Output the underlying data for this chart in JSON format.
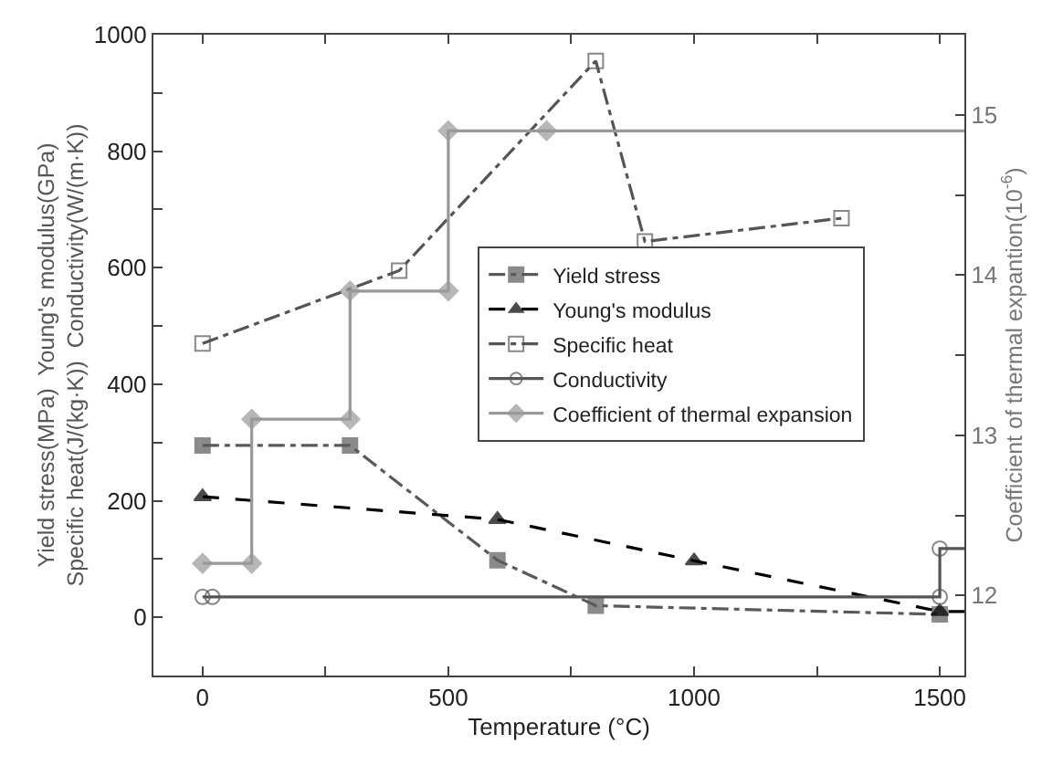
{
  "chart_data": {
    "type": "line",
    "xlabel": "Temperature (°C)",
    "ylabel": "Yield stress(MPa)  Young's modulus(GPa)\nSpecific heat(J/(kg·K))  Conductivity(W/(m·K))",
    "y2label": "Coefficient of thermal expantion(10$^{-6}$)",
    "xlim": [
      -100,
      1550
    ],
    "xticks": [
      0,
      {
        "value": 250,
        "label": null
      },
      500,
      {
        "value": 750,
        "label": null
      },
      1000,
      {
        "value": 1250,
        "label": null
      },
      1500
    ],
    "ylim": [
      -100,
      1000
    ],
    "yticks": [
      {
        "value": -100,
        "label": null
      },
      0,
      {
        "value": 100,
        "label": null
      },
      200,
      {
        "value": 300,
        "label": null
      },
      400,
      {
        "value": 500,
        "label": null
      },
      600,
      {
        "value": 700,
        "label": null
      },
      800,
      {
        "value": 900,
        "label": null
      },
      1000
    ],
    "y2lim": [
      11.5,
      15.5
    ],
    "y2ticks": [
      12,
      {
        "value": 12.5,
        "label": null
      },
      13,
      {
        "value": 13.5,
        "label": null
      },
      14,
      {
        "value": 14.5,
        "label": null
      },
      15
    ],
    "legend": "right",
    "series": [
      {
        "name": "Yield stress",
        "color": "#5a5a5a",
        "marker": "square",
        "line_style": "dashdot",
        "x": [
          0,
          300,
          600,
          800,
          1500
        ],
        "values": [
          295,
          295,
          98,
          20,
          5
        ]
      },
      {
        "name": "Young's modulus",
        "color": "#000000",
        "marker": "triangle",
        "line_style": "dashed",
        "x": [
          0,
          600,
          1000,
          1500,
          1550
        ],
        "values": [
          207,
          168,
          97,
          10,
          10
        ]
      },
      {
        "name": "Specific heat",
        "color": "#555555",
        "marker": "square-open",
        "line_style": "dashdot",
        "x": [
          0,
          400,
          800,
          900,
          1300
        ],
        "values": [
          470,
          595,
          955,
          645,
          685
        ]
      },
      {
        "name": "Conductivity",
        "color": "#555555",
        "marker": "circle-open",
        "line_style": "solid",
        "x": [
          0,
          20,
          1500,
          1500,
          1550
        ],
        "values": [
          35,
          35,
          35,
          118,
          118
        ]
      },
      {
        "name": "Coefficient of thermal expansion",
        "color": "#999999",
        "marker": "diamond",
        "line_style": "solid",
        "axis": "y2",
        "x": [
          0,
          100,
          100,
          300,
          300,
          500,
          500,
          700,
          1550
        ],
        "values": [
          12.2,
          12.2,
          13.1,
          13.1,
          13.9,
          13.9,
          14.9,
          14.9,
          14.9
        ]
      }
    ]
  }
}
